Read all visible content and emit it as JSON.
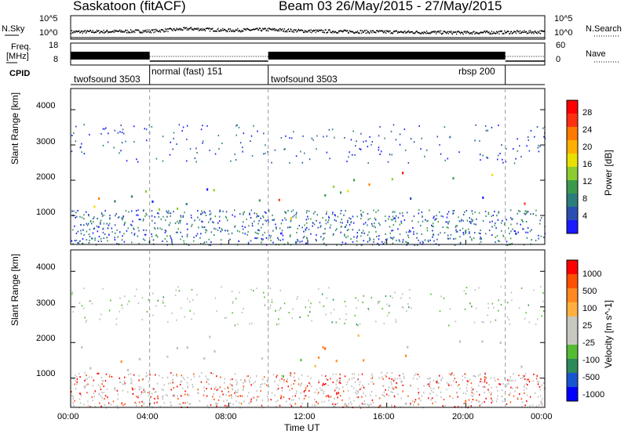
{
  "header": {
    "station": "Saskatoon (fitACF)",
    "beam_date": "Beam 03 26/May/2015 - 27/May/2015"
  },
  "left_labels": {
    "nsky": "N.Sky",
    "freq": "Freq.",
    "freq_unit": "[MHz]",
    "cpid": "CPID"
  },
  "right_labels": {
    "nsearch": "N.Search",
    "nave": "Nave"
  },
  "colors": {
    "power_scale": [
      "#1a1aff",
      "#2b4fb0",
      "#2e7d7d",
      "#3c9a4d",
      "#8ccc30",
      "#e8e000",
      "#ffb000",
      "#ff7a00",
      "#ff3010",
      "#ff0000"
    ],
    "velocity_scale": [
      "#0000ff",
      "#1a55d0",
      "#2d8a5a",
      "#55bb33",
      "#c8c8c0",
      "#c8c8c0",
      "#ffb040",
      "#ff8820",
      "#ff5000",
      "#ff0000"
    ],
    "ground_scatter": "#bebebe"
  },
  "chart_data": [
    {
      "type": "scatter",
      "name": "noise_sky_search",
      "ylabel_left": "N.Sky",
      "ylabel_right": "N.Search",
      "yticks_left": [
        "10^5",
        "10^0"
      ],
      "yticks_right": [
        "10^5",
        "10^0"
      ],
      "x_range_hours": [
        0,
        24
      ],
      "approx_level_log": [
        {
          "t": 0,
          "v": 0.8
        },
        {
          "t": 4,
          "v": 0.9
        },
        {
          "t": 6,
          "v": 1.2
        },
        {
          "t": 8,
          "v": 1.0
        },
        {
          "t": 10,
          "v": 1.1
        },
        {
          "t": 12,
          "v": 0.9
        },
        {
          "t": 16,
          "v": 0.8
        },
        {
          "t": 20,
          "v": 0.7
        },
        {
          "t": 24,
          "v": 0.8
        }
      ]
    },
    {
      "type": "line",
      "name": "frequency_nave",
      "ylabel_left": "Freq. [MHz]",
      "ylabel_right": "Nave",
      "yticks_left": [
        "18",
        "8"
      ],
      "yticks_right": [
        "60",
        "0"
      ],
      "segments": [
        {
          "start": 0,
          "end": 4,
          "style": "solid"
        },
        {
          "start": 4,
          "end": 10,
          "style": "dotted"
        },
        {
          "start": 10,
          "end": 22,
          "style": "solid"
        },
        {
          "start": 22,
          "end": 24,
          "style": "dotted"
        }
      ]
    },
    {
      "type": "table",
      "name": "cpid",
      "ylabel": "CPID",
      "entries": [
        {
          "start": 0,
          "label": "twofsound 3503"
        },
        {
          "start": 4,
          "label": "normal (fast) 151"
        },
        {
          "start": 10,
          "label": "twofsound 3503"
        },
        {
          "start": 22,
          "label": "rbsp 200"
        }
      ]
    },
    {
      "type": "heatmap",
      "name": "power",
      "ylabel": "Slant Range [km]",
      "yticks": [
        1000,
        2000,
        3000,
        4000
      ],
      "ylim": [
        180,
        4600
      ],
      "xlim": [
        0,
        24
      ],
      "colorbar_label": "Power [dB]",
      "colorbar_ticks": [
        "28",
        "24",
        "20",
        "16",
        "12",
        "8",
        "4"
      ]
    },
    {
      "type": "heatmap",
      "name": "velocity",
      "ylabel": "Slant Range [km]",
      "yticks": [
        1000,
        2000,
        3000,
        4000
      ],
      "ylim": [
        180,
        4600
      ],
      "xlim": [
        0,
        24
      ],
      "xlabel": "Time UT",
      "xticks": [
        "00:00",
        "04:00",
        "08:00",
        "12:00",
        "16:00",
        "20:00",
        "00:00"
      ],
      "colorbar_label": "Velocity [m s^-1]",
      "colorbar_ticks": [
        "1000",
        "500",
        "100",
        "25",
        "-25",
        "-100",
        "-500",
        "-1000"
      ]
    }
  ],
  "regions": [
    {
      "t0": 0,
      "t1": 4,
      "r0": 1200,
      "r1": 2050,
      "kind": "band"
    },
    {
      "t0": 0,
      "t1": 4,
      "r0": 1350,
      "r1": 1550,
      "kind": "strong"
    },
    {
      "t0": 4,
      "t1": 10,
      "r0": 1100,
      "r1": 2150,
      "kind": "arc"
    },
    {
      "t0": 10,
      "t1": 12,
      "r0": 900,
      "r1": 1900,
      "kind": "strong"
    },
    {
      "t0": 12,
      "t1": 17,
      "r0": 1300,
      "r1": 2800,
      "kind": "rise"
    },
    {
      "t0": 17,
      "t1": 22,
      "r0": 1400,
      "r1": 2200,
      "kind": "band"
    },
    {
      "t0": 22,
      "t1": 24,
      "r0": 1300,
      "r1": 1700,
      "kind": "band"
    }
  ]
}
